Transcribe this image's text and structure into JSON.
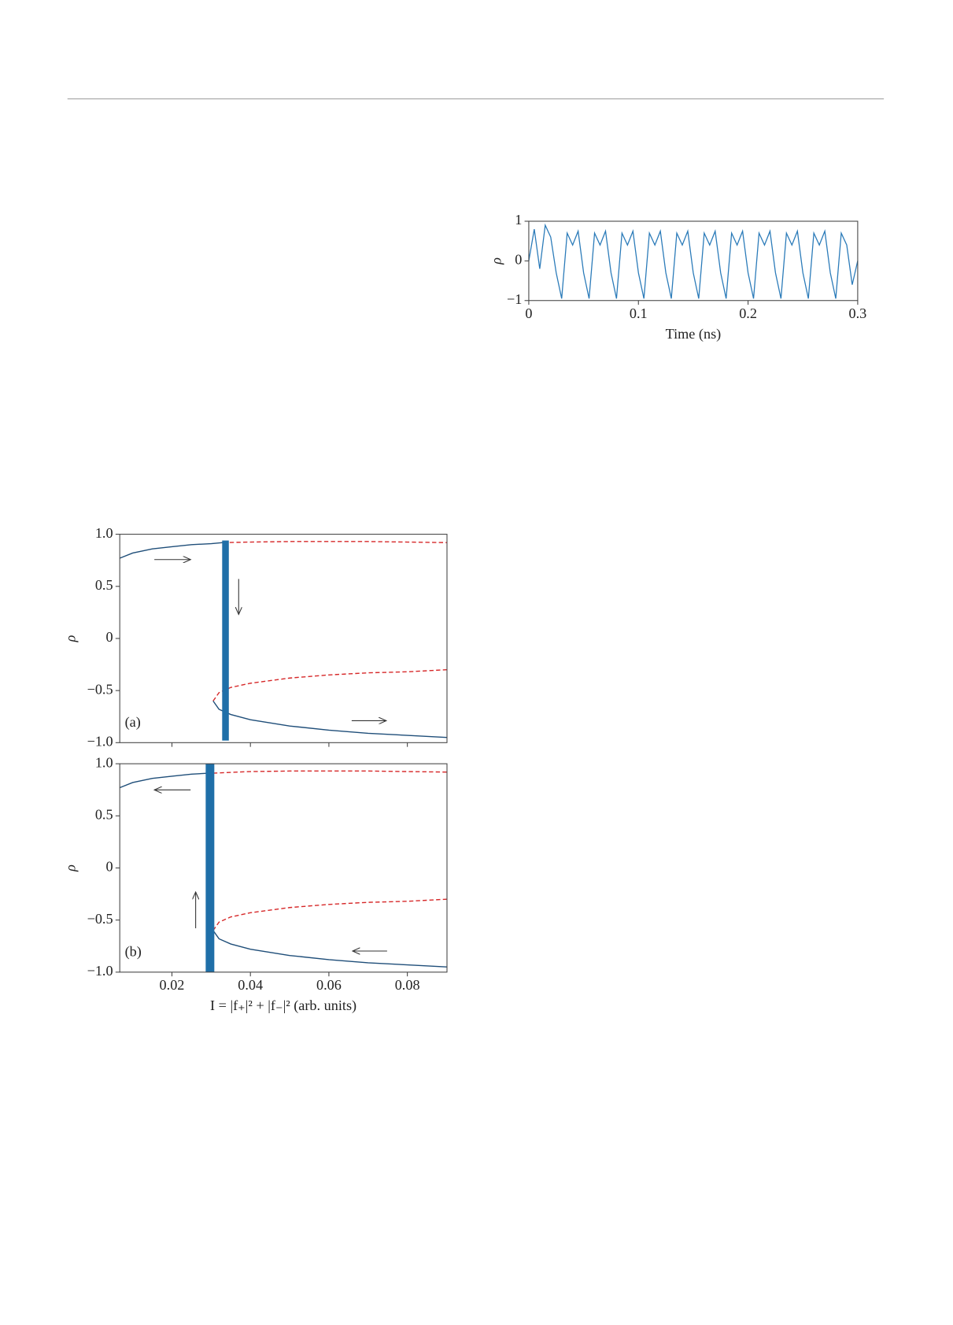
{
  "chart_data": [
    {
      "type": "line",
      "x_label": "Time (ns)",
      "y_label": "ρ",
      "xlim": [
        0,
        0.3
      ],
      "ylim": [
        -1,
        1
      ],
      "xticks": [
        0,
        0.1,
        0.2,
        0.3
      ],
      "yticks": [
        {
          "value": -1,
          "label": "−1"
        },
        0,
        1
      ],
      "color": "#2b7bb9",
      "x": [
        0,
        0.005,
        0.01,
        0.015,
        0.02,
        0.025,
        0.03,
        0.035,
        0.04,
        0.045,
        0.05,
        0.055,
        0.06,
        0.065,
        0.07,
        0.075,
        0.08,
        0.085,
        0.09,
        0.095,
        0.1,
        0.105,
        0.11,
        0.115,
        0.12,
        0.125,
        0.13,
        0.135,
        0.14,
        0.145,
        0.15,
        0.155,
        0.16,
        0.165,
        0.17,
        0.175,
        0.18,
        0.185,
        0.19,
        0.195,
        0.2,
        0.205,
        0.21,
        0.215,
        0.22,
        0.225,
        0.23,
        0.235,
        0.24,
        0.245,
        0.25,
        0.255,
        0.26,
        0.265,
        0.27,
        0.275,
        0.28,
        0.285,
        0.29,
        0.295,
        0.3
      ],
      "values": [
        0,
        0.8,
        -0.2,
        0.9,
        0.6,
        -0.3,
        -0.95,
        0.7,
        0.4,
        0.75,
        -0.3,
        -0.95,
        0.7,
        0.4,
        0.75,
        -0.3,
        -0.95,
        0.7,
        0.4,
        0.75,
        -0.3,
        -0.95,
        0.7,
        0.4,
        0.75,
        -0.3,
        -0.95,
        0.7,
        0.4,
        0.75,
        -0.3,
        -0.95,
        0.7,
        0.4,
        0.75,
        -0.3,
        -0.95,
        0.7,
        0.4,
        0.75,
        -0.3,
        -0.95,
        0.7,
        0.4,
        0.75,
        -0.3,
        -0.95,
        0.7,
        0.4,
        0.75,
        -0.3,
        -0.95,
        0.7,
        0.4,
        0.75,
        -0.3,
        -0.95,
        0.7,
        0.4,
        -0.6,
        0
      ]
    },
    {
      "type": "bifurcation",
      "annotation": "(a)",
      "y_label": "ρ",
      "xlim": [
        0.0067,
        0.0901
      ],
      "ylim": [
        -1,
        1
      ],
      "xticks": [
        0.02,
        0.04,
        0.06,
        0.08
      ],
      "show_xtick_labels": false,
      "yticks": [
        {
          "value": -1,
          "label": "−1.0"
        },
        {
          "value": -0.5,
          "label": "−0.5"
        },
        0,
        0.5,
        {
          "value": 1,
          "label": "1.0"
        }
      ],
      "series": [
        {
          "color": "#1f4e79",
          "style": "solid",
          "x": [
            0.0067,
            0.01,
            0.015,
            0.02,
            0.025,
            0.03,
            0.033
          ],
          "values": [
            0.77,
            0.82,
            0.86,
            0.88,
            0.9,
            0.91,
            0.92
          ]
        },
        {
          "color": "#d62728",
          "style": "dashed",
          "x": [
            0.033,
            0.04,
            0.05,
            0.06,
            0.07,
            0.08,
            0.09
          ],
          "values": [
            0.92,
            0.925,
            0.93,
            0.93,
            0.93,
            0.925,
            0.92
          ]
        },
        {
          "color": "#d62728",
          "style": "dashed",
          "x": [
            0.0305,
            0.032,
            0.035,
            0.04,
            0.05,
            0.06,
            0.07,
            0.08,
            0.09
          ],
          "values": [
            -0.6,
            -0.52,
            -0.47,
            -0.43,
            -0.38,
            -0.35,
            -0.33,
            -0.32,
            -0.3
          ]
        },
        {
          "color": "#1f4e79",
          "style": "solid",
          "x": [
            0.0305,
            0.032,
            0.035,
            0.04,
            0.05,
            0.06,
            0.07,
            0.08,
            0.09
          ],
          "values": [
            -0.6,
            -0.68,
            -0.73,
            -0.78,
            -0.84,
            -0.88,
            -0.91,
            -0.93,
            -0.95
          ]
        }
      ],
      "oscillation": {
        "color": "#1f6fa8",
        "x": [
          0.0328,
          0.0345
        ],
        "values": [
          -0.98,
          0.94
        ]
      }
    },
    {
      "type": "bifurcation",
      "annotation": "(b)",
      "y_label": "ρ",
      "x_label": "I = |f₊|² + |f₋|² (arb. units)",
      "xlim": [
        0.0067,
        0.0901
      ],
      "ylim": [
        -1,
        1
      ],
      "xticks": [
        0.02,
        0.04,
        0.06,
        0.08
      ],
      "show_xtick_labels": true,
      "yticks": [
        {
          "value": -1,
          "label": "−1.0"
        },
        {
          "value": -0.5,
          "label": "−0.5"
        },
        0,
        0.5,
        {
          "value": 1,
          "label": "1.0"
        }
      ],
      "series": [
        {
          "color": "#1f4e79",
          "style": "solid",
          "x": [
            0.0067,
            0.01,
            0.015,
            0.02,
            0.025,
            0.0295
          ],
          "values": [
            0.77,
            0.82,
            0.86,
            0.88,
            0.9,
            0.91
          ]
        },
        {
          "color": "#d62728",
          "style": "dashed",
          "x": [
            0.0305,
            0.04,
            0.05,
            0.06,
            0.07,
            0.08,
            0.09
          ],
          "values": [
            0.91,
            0.925,
            0.93,
            0.93,
            0.93,
            0.925,
            0.92
          ]
        },
        {
          "color": "#d62728",
          "style": "dashed",
          "x": [
            0.0305,
            0.032,
            0.035,
            0.04,
            0.05,
            0.06,
            0.07,
            0.08,
            0.09
          ],
          "values": [
            -0.6,
            -0.52,
            -0.47,
            -0.43,
            -0.38,
            -0.35,
            -0.33,
            -0.32,
            -0.3
          ]
        },
        {
          "color": "#1f4e79",
          "style": "solid",
          "x": [
            0.0305,
            0.032,
            0.035,
            0.04,
            0.05,
            0.06,
            0.07,
            0.08,
            0.09
          ],
          "values": [
            -0.6,
            -0.68,
            -0.73,
            -0.78,
            -0.84,
            -0.88,
            -0.91,
            -0.93,
            -0.95
          ]
        }
      ],
      "oscillation": {
        "color": "#1f6fa8",
        "x": [
          0.0286,
          0.0308
        ],
        "values": [
          -1,
          1
        ]
      }
    }
  ]
}
